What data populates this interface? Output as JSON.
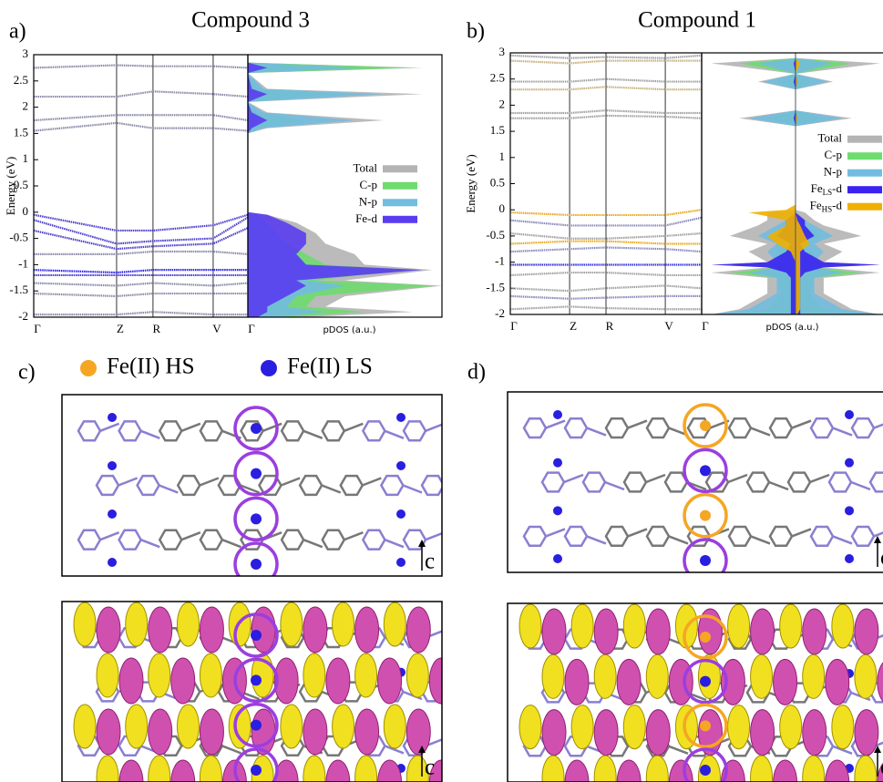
{
  "chart_data": [
    {
      "type": "line",
      "panel_label": "a)",
      "title": "Compound 3",
      "y_label": "Energy (eV)",
      "x": [
        0,
        0.387,
        0.557,
        0.838,
        1
      ],
      "xlim": [
        0,
        1
      ],
      "xticks": [
        {
          "value": 0,
          "label": "Γ"
        },
        {
          "value": 0.387,
          "label": "Z"
        },
        {
          "value": 0.557,
          "label": "R"
        },
        {
          "value": 0.838,
          "label": "V"
        },
        {
          "value": 1,
          "label": "Γ"
        }
      ],
      "ylim": [
        -2,
        3
      ],
      "yticks": [
        -2,
        -1.5,
        -1,
        -0.5,
        0,
        0.5,
        1,
        1.5,
        2,
        2.5,
        3
      ],
      "grid_x": true,
      "series": [
        {
          "color": "#8a8aa8",
          "values": [
            2.75,
            2.8,
            2.78,
            2.78,
            2.75
          ]
        },
        {
          "color": "#8a8aa8",
          "values": [
            2.2,
            2.2,
            2.3,
            2.25,
            2.2
          ]
        },
        {
          "color": "#8a8aa8",
          "values": [
            1.75,
            1.85,
            1.85,
            1.85,
            1.75
          ]
        },
        {
          "color": "#8a8aa8",
          "values": [
            1.55,
            1.7,
            1.6,
            1.6,
            1.55
          ]
        },
        {
          "color": "#4a3ccc",
          "values": [
            -0.05,
            -0.35,
            -0.35,
            -0.25,
            -0.05
          ]
        },
        {
          "color": "#4a3ccc",
          "values": [
            -0.15,
            -0.6,
            -0.55,
            -0.5,
            -0.1
          ]
        },
        {
          "color": "#4a3ccc",
          "values": [
            -0.35,
            -0.7,
            -0.65,
            -0.6,
            -0.3
          ]
        },
        {
          "color": "#8a8aa8",
          "values": [
            -0.8,
            -0.8,
            -0.75,
            -0.75,
            -0.8
          ]
        },
        {
          "color": "#2a22ee",
          "values": [
            -1.1,
            -1.15,
            -1.1,
            -1.1,
            -1.1
          ]
        },
        {
          "color": "#4a3ccc",
          "values": [
            -1.2,
            -1.2,
            -1.2,
            -1.2,
            -1.2
          ]
        },
        {
          "color": "#8a8aa8",
          "values": [
            -1.35,
            -1.4,
            -1.35,
            -1.4,
            -1.35
          ]
        },
        {
          "color": "#8a8aa8",
          "values": [
            -1.55,
            -1.6,
            -1.55,
            -1.55,
            -1.55
          ]
        },
        {
          "color": "#8a8aa8",
          "values": [
            -1.95,
            -1.95,
            -1.9,
            -1.95,
            -1.95
          ]
        }
      ]
    },
    {
      "type": "area",
      "x_label": "pDOS (a.u.)",
      "xlim": [
        0,
        1
      ],
      "ylim": [
        -2,
        3
      ],
      "legend_loc": "center right",
      "y": [
        -2,
        -1.9,
        -1.8,
        -1.6,
        -1.4,
        -1.3,
        -1.1,
        -1.0,
        -0.8,
        -0.6,
        -0.4,
        -0.2,
        -0.05,
        0,
        1.5,
        1.6,
        1.75,
        1.9,
        2.1,
        2.25,
        2.35,
        2.65,
        2.75,
        2.85,
        3
      ],
      "series": [
        {
          "name": [
            "Total"
          ],
          "color": "#b4b4b4",
          "values": [
            0.3,
            0.85,
            0.4,
            0.5,
            1.0,
            0.5,
            0.95,
            0.6,
            0.55,
            0.4,
            0.35,
            0.25,
            0.1,
            0,
            0,
            0.1,
            0.7,
            0.1,
            0,
            0.9,
            0.1,
            0,
            0.9,
            0,
            0
          ]
        },
        {
          "name": [
            "C-p"
          ],
          "color": "#6edc6e",
          "values": [
            0.2,
            0.6,
            0.3,
            0.35,
            0.98,
            0.35,
            0.8,
            0.4,
            0.3,
            0.2,
            0.15,
            0.1,
            0.05,
            0,
            0,
            0.05,
            0.3,
            0.05,
            0,
            0.5,
            0.05,
            0,
            0.85,
            0,
            0
          ]
        },
        {
          "name": [
            "N-p"
          ],
          "color": "#72bce0",
          "values": [
            0.15,
            0.4,
            0.2,
            0.25,
            0.5,
            0.3,
            0.6,
            0.3,
            0.25,
            0.2,
            0.15,
            0.1,
            0.05,
            0,
            0,
            0.08,
            0.55,
            0.08,
            0,
            0.7,
            0.08,
            0,
            0.6,
            0,
            0
          ]
        },
        {
          "name": [
            "Fe-d"
          ],
          "color": "#5a3cf0",
          "values": [
            0.05,
            0.1,
            0.1,
            0.2,
            0.3,
            0.25,
            0.9,
            0.3,
            0.25,
            0.3,
            0.3,
            0.2,
            0.1,
            0,
            0,
            0.02,
            0.1,
            0.02,
            0,
            0.1,
            0.02,
            0,
            0.1,
            0,
            0
          ]
        }
      ]
    },
    {
      "type": "line",
      "panel_label": "b)",
      "title": "Compound 1",
      "y_label": "Energy (eV)",
      "x": [
        0,
        0.31,
        0.5,
        0.81,
        1
      ],
      "xlim": [
        0,
        1
      ],
      "xticks": [
        {
          "value": 0,
          "label": "Γ"
        },
        {
          "value": 0.31,
          "label": "Z"
        },
        {
          "value": 0.5,
          "label": "R"
        },
        {
          "value": 0.81,
          "label": "V"
        },
        {
          "value": 1,
          "label": "Γ"
        }
      ],
      "ylim": [
        -2,
        3
      ],
      "yticks": [
        -2,
        -1.5,
        -1,
        -0.5,
        0,
        0.5,
        1,
        1.5,
        2,
        2.5,
        3
      ],
      "grid_x": true,
      "series": [
        {
          "color": "#a0a0a0",
          "values": [
            2.95,
            2.9,
            2.92,
            2.9,
            2.95
          ]
        },
        {
          "color": "#c8b080",
          "values": [
            2.85,
            2.8,
            2.85,
            2.85,
            2.85
          ]
        },
        {
          "color": "#a0a0a0",
          "values": [
            2.45,
            2.45,
            2.5,
            2.45,
            2.45
          ]
        },
        {
          "color": "#c8b080",
          "values": [
            2.3,
            2.3,
            2.35,
            2.3,
            2.3
          ]
        },
        {
          "color": "#a0a0a0",
          "values": [
            1.85,
            1.85,
            1.9,
            1.85,
            1.85
          ]
        },
        {
          "color": "#a0a0a0",
          "values": [
            1.75,
            1.75,
            1.8,
            1.78,
            1.75
          ]
        },
        {
          "color": "#e8a820",
          "values": [
            -0.05,
            -0.1,
            -0.1,
            -0.1,
            0
          ]
        },
        {
          "color": "#8888bb",
          "values": [
            -0.2,
            -0.3,
            -0.3,
            -0.3,
            -0.15
          ]
        },
        {
          "color": "#a0a0a0",
          "values": [
            -0.45,
            -0.55,
            -0.55,
            -0.5,
            -0.45
          ]
        },
        {
          "color": "#e8a820",
          "values": [
            -0.65,
            -0.6,
            -0.6,
            -0.65,
            -0.65
          ]
        },
        {
          "color": "#8888bb",
          "values": [
            -0.8,
            -0.75,
            -0.72,
            -0.75,
            -0.8
          ]
        },
        {
          "color": "#3333dd",
          "values": [
            -1.05,
            -1.05,
            -1.05,
            -1.05,
            -1.05
          ]
        },
        {
          "color": "#a0a0a0",
          "values": [
            -1.25,
            -1.2,
            -1.2,
            -1.25,
            -1.25
          ]
        },
        {
          "color": "#a0a0a0",
          "values": [
            -1.5,
            -1.55,
            -1.5,
            -1.45,
            -1.5
          ]
        },
        {
          "color": "#8888bb",
          "values": [
            -1.65,
            -1.7,
            -1.68,
            -1.65,
            -1.65
          ]
        },
        {
          "color": "#a0a0a0",
          "values": [
            -1.9,
            -1.85,
            -1.88,
            -1.9,
            -1.9
          ]
        }
      ]
    },
    {
      "type": "area",
      "x_label": "pDOS (a.u.)",
      "xlim": [
        -1,
        1
      ],
      "ylim": [
        -2,
        3
      ],
      "legend_loc": "upper right",
      "y": [
        -2,
        -1.9,
        -1.6,
        -1.3,
        -1.2,
        -1.1,
        -1.05,
        -1.0,
        -0.8,
        -0.65,
        -0.5,
        -0.3,
        -0.2,
        -0.05,
        0,
        0.1,
        1.6,
        1.75,
        1.9,
        2.3,
        2.45,
        2.6,
        2.8,
        2.9,
        3
      ],
      "series": [
        {
          "name": [
            "Total"
          ],
          "color": "#b4b4b4",
          "values": [
            0.9,
            0.6,
            0.3,
            0.3,
            0.9,
            0.3,
            0.9,
            0.3,
            0.5,
            0.3,
            0.7,
            0.3,
            0.2,
            0.1,
            0,
            0,
            0,
            0.6,
            0,
            0,
            0.4,
            0,
            0.9,
            0,
            0
          ],
          "values_down": [
            -0.9,
            -0.6,
            -0.3,
            -0.3,
            -0.9,
            -0.3,
            -0.9,
            -0.3,
            -0.5,
            -0.3,
            -0.7,
            -0.4,
            -0.3,
            -0.3,
            0,
            0,
            0,
            -0.6,
            0,
            0,
            -0.4,
            0,
            -0.9,
            0,
            0
          ]
        },
        {
          "name": [
            "C-p"
          ],
          "color": "#6edc6e",
          "values": [
            0.7,
            0.3,
            0.15,
            0.2,
            0.7,
            0.2,
            0.6,
            0.15,
            0.2,
            0.1,
            0.3,
            0.1,
            0.05,
            0,
            0,
            0,
            0,
            0.3,
            0,
            0,
            0.2,
            0,
            0.6,
            0,
            0
          ],
          "values_down": [
            -0.7,
            -0.3,
            -0.15,
            -0.2,
            -0.7,
            -0.2,
            -0.6,
            -0.15,
            -0.2,
            -0.1,
            -0.3,
            -0.1,
            -0.05,
            0,
            0,
            0,
            0,
            -0.3,
            0,
            0,
            -0.2,
            0,
            -0.6,
            0,
            0
          ]
        },
        {
          "name": [
            "N-p"
          ],
          "color": "#72bce0",
          "values": [
            0.9,
            0.5,
            0.2,
            0.2,
            0.5,
            0.2,
            0.5,
            0.2,
            0.3,
            0.2,
            0.4,
            0.2,
            0.1,
            0,
            0,
            0,
            0,
            0.5,
            0,
            0,
            0.35,
            0,
            0.4,
            0,
            0
          ],
          "values_down": [
            -0.9,
            -0.5,
            -0.2,
            -0.2,
            -0.5,
            -0.2,
            -0.5,
            -0.2,
            -0.3,
            -0.2,
            -0.4,
            -0.2,
            -0.1,
            0,
            0,
            0,
            0,
            -0.5,
            0,
            0,
            -0.35,
            0,
            -0.4,
            0,
            0
          ]
        },
        {
          "name": [
            "Fe",
            "LS",
            "-d"
          ],
          "color": "#3a22f0",
          "values": [
            0.05,
            0.05,
            0.05,
            0.05,
            0.1,
            0.3,
            0.9,
            0.3,
            0.1,
            0.05,
            0.2,
            0.1,
            0.1,
            0,
            0,
            0,
            0,
            0.02,
            0,
            0,
            0.02,
            0,
            0.02,
            0,
            0
          ],
          "values_down": [
            -0.05,
            -0.05,
            -0.05,
            -0.05,
            -0.1,
            -0.3,
            -0.9,
            -0.3,
            -0.1,
            -0.05,
            -0.2,
            -0.1,
            -0.1,
            0,
            0,
            0,
            0,
            -0.02,
            0,
            0,
            -0.02,
            0,
            -0.02,
            0,
            0
          ]
        },
        {
          "name": [
            "Fe",
            "HS",
            "-d"
          ],
          "color": "#f0b000",
          "values": [
            0.02,
            0.05,
            0.05,
            0.05,
            0.05,
            0.05,
            0.05,
            0.05,
            0.05,
            0.15,
            0.1,
            0.05,
            0.02,
            0,
            0,
            0,
            0,
            0.02,
            0,
            0,
            0.02,
            0,
            0.05,
            0,
            0
          ],
          "values_down": [
            0,
            0,
            0,
            0,
            0,
            0,
            0,
            0,
            -0.05,
            -0.2,
            -0.3,
            -0.1,
            -0.1,
            -0.5,
            -0.1,
            0,
            0,
            0,
            0,
            0,
            0,
            0,
            0,
            0,
            0
          ]
        }
      ]
    }
  ],
  "structures": {
    "panels": [
      {
        "label": "c)"
      },
      {
        "label": "d)"
      }
    ],
    "legend": [
      {
        "label": "Fe(II) HS",
        "color": "#f5a623"
      },
      {
        "label": "Fe(II) LS",
        "color": "#2a1ee0"
      }
    ],
    "axis_label": "c"
  }
}
